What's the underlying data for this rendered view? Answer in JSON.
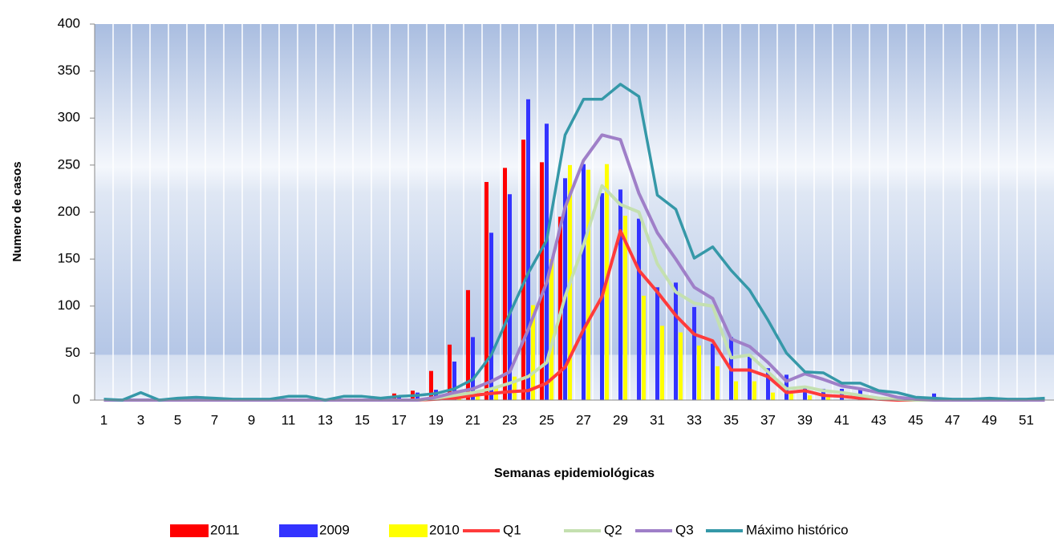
{
  "chart_data": {
    "type": "bar",
    "xlabel": "Semanas epidemiológicas",
    "ylabel": "Numero de casos",
    "categories": [
      "1",
      null,
      "3",
      null,
      "5",
      null,
      "7",
      null,
      "9",
      null,
      "11",
      null,
      "13",
      null,
      "15",
      null,
      "17",
      null,
      "19",
      null,
      "21",
      null,
      "23",
      null,
      "25",
      null,
      "27",
      null,
      "29",
      null,
      "31",
      null,
      "33",
      null,
      "35",
      null,
      "37",
      null,
      "39",
      null,
      "41",
      null,
      "43",
      null,
      "45",
      null,
      "47",
      null,
      "49",
      null,
      "51",
      null
    ],
    "ylim": [
      0,
      400
    ],
    "yticks": [
      0,
      50,
      100,
      150,
      200,
      250,
      300,
      350,
      400
    ],
    "series": [
      {
        "name": "2011",
        "type": "bar",
        "color": "#ff0000",
        "values": [
          0,
          0,
          0,
          0,
          0,
          0,
          0,
          0,
          0,
          0,
          0,
          0,
          0,
          0,
          0,
          0,
          7,
          10,
          31,
          59,
          117,
          232,
          247,
          277,
          253,
          195,
          null,
          null,
          null,
          null,
          null,
          null,
          null,
          null,
          null,
          null,
          null,
          null,
          null,
          null,
          null,
          null,
          null,
          null,
          null,
          null,
          null,
          null,
          null,
          null,
          null,
          null
        ]
      },
      {
        "name": "2009",
        "type": "bar",
        "color": "#3333ff",
        "values": [
          0,
          0,
          0,
          0,
          0,
          0,
          0,
          0,
          0,
          0,
          0,
          0,
          0,
          0,
          0,
          0,
          3,
          8,
          11,
          41,
          67,
          178,
          219,
          320,
          294,
          236,
          251,
          220,
          224,
          193,
          120,
          125,
          99,
          60,
          67,
          47,
          34,
          27,
          15,
          12,
          12,
          12,
          2,
          1,
          1,
          7,
          0,
          0,
          0,
          0,
          0,
          0
        ]
      },
      {
        "name": "2010",
        "type": "bar",
        "color": "#ffff00",
        "values": [
          0,
          0,
          0,
          0,
          0,
          0,
          0,
          0,
          0,
          0,
          0,
          0,
          0,
          0,
          0,
          0,
          0,
          0,
          0,
          3,
          5,
          13,
          25,
          101,
          150,
          250,
          245,
          251,
          196,
          111,
          79,
          72,
          58,
          36,
          20,
          20,
          8,
          7,
          5,
          3,
          0,
          0,
          0,
          0,
          0,
          0,
          0,
          0,
          0,
          0,
          0,
          0
        ]
      },
      {
        "name": "Q1",
        "type": "line",
        "color": "#ff3b3b",
        "values": [
          0,
          0,
          0,
          0,
          0,
          0,
          0,
          0,
          0,
          0,
          0,
          0,
          0,
          0,
          0,
          0,
          0,
          0,
          1,
          2,
          5,
          7,
          9,
          10,
          18,
          35,
          75,
          110,
          180,
          138,
          115,
          90,
          70,
          63,
          32,
          32,
          25,
          8,
          10,
          5,
          4,
          2,
          1,
          0,
          0,
          0,
          0,
          0,
          0,
          0,
          0,
          0
        ]
      },
      {
        "name": "Q2",
        "type": "line",
        "color": "#c4e0b0",
        "values": [
          0,
          0,
          0,
          0,
          0,
          0,
          0,
          0,
          0,
          0,
          0,
          0,
          0,
          0,
          0,
          0,
          0,
          0,
          2,
          5,
          8,
          12,
          18,
          25,
          40,
          110,
          165,
          228,
          208,
          200,
          145,
          115,
          103,
          100,
          45,
          48,
          30,
          12,
          14,
          10,
          8,
          5,
          2,
          1,
          0,
          0,
          0,
          0,
          0,
          0,
          0,
          0
        ]
      },
      {
        "name": "Q3",
        "type": "line",
        "color": "#9f7fc8",
        "values": [
          0,
          0,
          0,
          0,
          0,
          0,
          0,
          0,
          0,
          0,
          0,
          0,
          0,
          0,
          0,
          0,
          0,
          0,
          3,
          8,
          12,
          20,
          30,
          75,
          125,
          205,
          255,
          282,
          277,
          220,
          178,
          150,
          120,
          108,
          65,
          57,
          40,
          20,
          28,
          22,
          15,
          12,
          8,
          3,
          1,
          0,
          0,
          0,
          0,
          0,
          0,
          0
        ]
      },
      {
        "name": "Máximo histórico",
        "type": "line",
        "color": "#3598a8",
        "values": [
          1,
          0,
          8,
          0,
          2,
          3,
          2,
          1,
          1,
          1,
          4,
          4,
          0,
          4,
          4,
          2,
          4,
          5,
          7,
          12,
          22,
          48,
          92,
          135,
          170,
          282,
          320,
          320,
          336,
          323,
          218,
          203,
          151,
          163,
          138,
          117,
          85,
          50,
          30,
          29,
          18,
          18,
          10,
          8,
          3,
          2,
          1,
          1,
          2,
          1,
          1,
          2
        ]
      }
    ]
  }
}
